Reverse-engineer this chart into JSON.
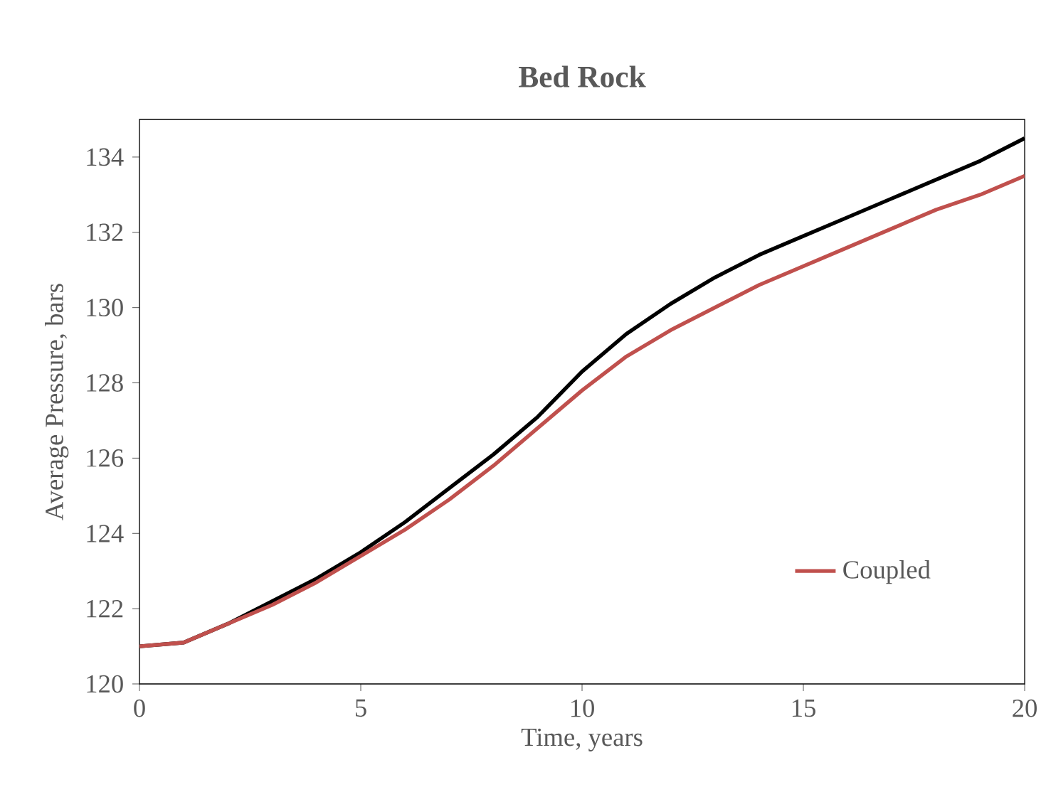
{
  "chart_data": {
    "type": "line",
    "title": "Bed Rock",
    "xlabel": "Time, years",
    "ylabel": "Average Pressure, bars",
    "x": [
      0,
      1,
      2,
      3,
      4,
      5,
      6,
      7,
      8,
      9,
      10,
      11,
      12,
      13,
      14,
      15,
      16,
      17,
      18,
      19,
      20
    ],
    "series": [
      {
        "color": "#000000",
        "values": [
          121.0,
          121.1,
          121.6,
          122.2,
          122.8,
          123.5,
          124.3,
          125.2,
          126.1,
          127.1,
          128.3,
          129.3,
          130.1,
          130.8,
          131.4,
          131.9,
          132.4,
          132.9,
          133.4,
          133.9,
          134.5
        ]
      },
      {
        "name": "Coupled",
        "color": "#c0504d",
        "values": [
          121.0,
          121.1,
          121.6,
          122.1,
          122.7,
          123.4,
          124.1,
          124.9,
          125.8,
          126.8,
          127.8,
          128.7,
          129.4,
          130.0,
          130.6,
          131.1,
          131.6,
          132.1,
          132.6,
          133.0,
          133.5
        ]
      }
    ],
    "xlim": [
      0,
      20
    ],
    "xticks": [
      0,
      5,
      10,
      15,
      20
    ],
    "ylim": [
      120,
      135
    ],
    "yticks": [
      120,
      122,
      124,
      126,
      128,
      130,
      132,
      134
    ],
    "grid": false,
    "legend": "right",
    "marker": "none",
    "line_style": "solid"
  }
}
